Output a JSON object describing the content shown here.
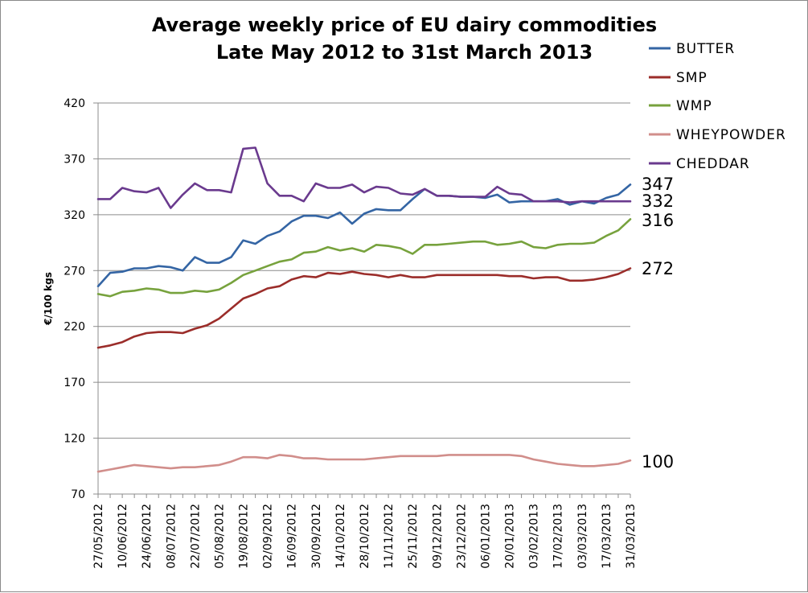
{
  "chart_data": {
    "type": "line",
    "title_lines": [
      "Average weekly price of EU dairy commodities",
      "Late May 2012 to 31st March 2013"
    ],
    "ylabel": "€/100 kgs",
    "xlabel": "",
    "ylim": [
      70,
      420
    ],
    "y_ticks": [
      "420",
      "370",
      "320",
      "270",
      "220",
      "170",
      "120",
      "70"
    ],
    "x_tick_labels": [
      "27/05/2012",
      "10/06/2012",
      "24/06/2012",
      "08/07/2012",
      "22/07/2012",
      "05/08/2012",
      "19/08/2012",
      "02/09/2012",
      "16/09/2012",
      "30/09/2012",
      "14/10/2012",
      "28/10/2012",
      "11/11/2012",
      "25/11/2012",
      "09/12/2012",
      "23/12/2012",
      "06/01/2013",
      "20/01/2013",
      "03/02/2013",
      "17/02/2013",
      "03/03/2013",
      "17/03/2013",
      "31/03/2013"
    ],
    "x": [
      "27/05/2012",
      "03/06/2012",
      "10/06/2012",
      "17/06/2012",
      "24/06/2012",
      "01/07/2012",
      "08/07/2012",
      "15/07/2012",
      "22/07/2012",
      "29/07/2012",
      "05/08/2012",
      "12/08/2012",
      "19/08/2012",
      "26/08/2012",
      "02/09/2012",
      "09/09/2012",
      "16/09/2012",
      "23/09/2012",
      "30/09/2012",
      "07/10/2012",
      "14/10/2012",
      "21/10/2012",
      "28/10/2012",
      "04/11/2012",
      "11/11/2012",
      "18/11/2012",
      "25/11/2012",
      "02/12/2012",
      "09/12/2012",
      "16/12/2012",
      "23/12/2012",
      "30/12/2012",
      "06/01/2013",
      "13/01/2013",
      "20/01/2013",
      "27/01/2013",
      "03/02/2013",
      "10/02/2013",
      "17/02/2013",
      "24/02/2013",
      "03/03/2013",
      "10/03/2013",
      "17/03/2013",
      "24/03/2013",
      "31/03/2013"
    ],
    "grid": "horizontal",
    "legend_position": "top-right",
    "series": [
      {
        "name": "BUTTER",
        "color": "#3465a4",
        "end_label": "347",
        "values": [
          256,
          268,
          269,
          272,
          272,
          274,
          273,
          270,
          282,
          277,
          277,
          282,
          297,
          294,
          301,
          305,
          314,
          319,
          319,
          317,
          322,
          312,
          321,
          325,
          324,
          324,
          334,
          343,
          337,
          337,
          336,
          336,
          335,
          338,
          331,
          332,
          332,
          332,
          334,
          329,
          332,
          330,
          335,
          338,
          347
        ]
      },
      {
        "name": "SMP",
        "color": "#9b2d2a",
        "end_label": "272",
        "values": [
          201,
          203,
          206,
          211,
          214,
          215,
          215,
          214,
          218,
          221,
          227,
          236,
          245,
          249,
          254,
          256,
          262,
          265,
          264,
          268,
          267,
          269,
          267,
          266,
          264,
          266,
          264,
          264,
          266,
          266,
          266,
          266,
          266,
          266,
          265,
          265,
          263,
          264,
          264,
          261,
          261,
          262,
          264,
          267,
          272
        ]
      },
      {
        "name": "WMP",
        "color": "#77a23d",
        "end_label": "316",
        "values": [
          249,
          247,
          251,
          252,
          254,
          253,
          250,
          250,
          252,
          251,
          253,
          259,
          266,
          270,
          274,
          278,
          280,
          286,
          287,
          291,
          288,
          290,
          287,
          293,
          292,
          290,
          285,
          293,
          293,
          294,
          295,
          296,
          296,
          293,
          294,
          296,
          291,
          290,
          293,
          294,
          294,
          295,
          301,
          306,
          316
        ]
      },
      {
        "name": "WHEYPOWDER",
        "color": "#d18e8b",
        "end_label": "100",
        "values": [
          90,
          92,
          94,
          96,
          95,
          94,
          93,
          94,
          94,
          95,
          96,
          99,
          103,
          103,
          102,
          105,
          104,
          102,
          102,
          101,
          101,
          101,
          101,
          102,
          103,
          104,
          104,
          104,
          104,
          105,
          105,
          105,
          105,
          105,
          105,
          104,
          101,
          99,
          97,
          96,
          95,
          95,
          96,
          97,
          100
        ]
      },
      {
        "name": "CHEDDAR",
        "color": "#6a3a8e",
        "end_label": "332",
        "values": [
          334,
          334,
          344,
          341,
          340,
          344,
          326,
          338,
          348,
          342,
          342,
          340,
          379,
          380,
          348,
          337,
          337,
          332,
          348,
          344,
          344,
          347,
          340,
          345,
          344,
          339,
          338,
          343,
          337,
          337,
          336,
          336,
          336,
          345,
          339,
          338,
          332,
          332,
          332,
          331,
          332,
          332,
          332,
          332,
          332
        ]
      }
    ]
  }
}
